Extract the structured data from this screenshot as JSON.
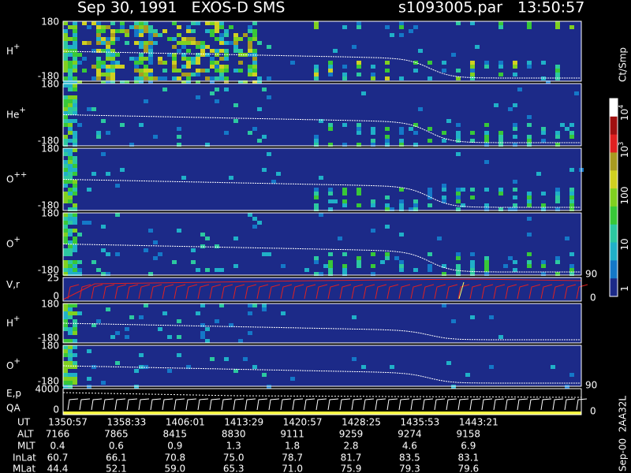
{
  "header": {
    "title": "Sep 30, 1991   EXOS-D SMS",
    "file": "s1093005.par",
    "time": "13:50:57"
  },
  "panels": [
    {
      "name": "H",
      "sup": "+",
      "top": "180",
      "bottom": "-180"
    },
    {
      "name": "He",
      "sup": "+",
      "top": "180",
      "bottom": "-180"
    },
    {
      "name": "O",
      "sup": "++",
      "top": "180",
      "bottom": "-180"
    },
    {
      "name": "O",
      "sup": "+",
      "top": "180",
      "bottom": "-180"
    },
    {
      "name": "V,r",
      "top": "25",
      "bottom": "0",
      "right_top": "90",
      "right_bottom": "0"
    },
    {
      "name": "H",
      "sup": "+",
      "top": "180",
      "bottom": "-180"
    },
    {
      "name": "O",
      "sup": "+",
      "top": "180",
      "bottom": "-180"
    },
    {
      "name": "E,p",
      "name2": "QA",
      "top": "4000",
      "bottom": "0",
      "right_top": "90",
      "right_bottom": "0"
    }
  ],
  "colorbar": {
    "unit": "Ct/Smp",
    "ticks": [
      {
        "text": "10",
        "sup": "4"
      },
      {
        "text": "10",
        "sup": "3"
      },
      {
        "text": "100"
      },
      {
        "text": "10"
      },
      {
        "text": "1"
      }
    ]
  },
  "note": "Sep-00  2AA32L",
  "table": {
    "rows": [
      {
        "label": "UT",
        "values": [
          "1350:57",
          "1358:33",
          "1406:01",
          "1413:29",
          "1420:57",
          "1428:25",
          "1435:53",
          "1443:21"
        ]
      },
      {
        "label": "ALT",
        "values": [
          "7166",
          "7865",
          "8415",
          "8830",
          "9111",
          "9259",
          "9274",
          "9158"
        ]
      },
      {
        "label": "MLT",
        "values": [
          "0.4",
          "0.6",
          "0.9",
          "1.3",
          "1.8",
          "2.8",
          "4.6",
          "6.9"
        ]
      },
      {
        "label": "InLat",
        "values": [
          "60.7",
          "66.1",
          "70.8",
          "75.0",
          "78.7",
          "81.7",
          "83.5",
          "83.1"
        ]
      },
      {
        "label": "MLat",
        "values": [
          "44.4",
          "52.1",
          "59.0",
          "65.3",
          "71.0",
          "75.9",
          "79.3",
          "79.6"
        ]
      }
    ]
  }
}
